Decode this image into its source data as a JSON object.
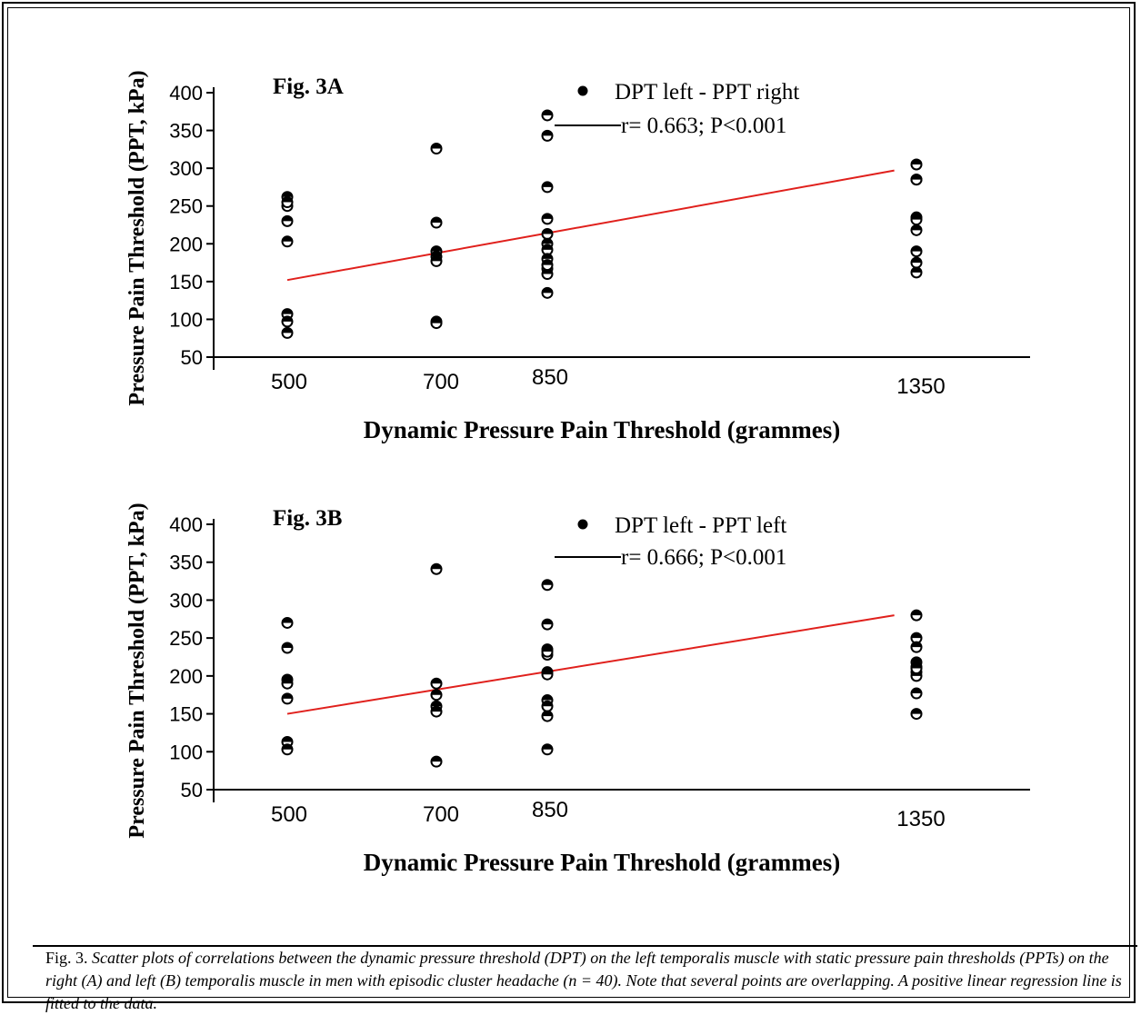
{
  "chart_data": [
    {
      "type": "scatter",
      "panel_label": "Fig. 3A",
      "xlabel": "Dynamic Pressure Pain Threshold (grammes)",
      "ylabel": "Pressure Pain Threshold (PPT, kPa)",
      "x_ticks": [
        "500",
        "700",
        "850",
        "1350"
      ],
      "x_tick_values": [
        500,
        700,
        850,
        1350
      ],
      "y_ticks": [
        50,
        100,
        150,
        200,
        250,
        300,
        350,
        400
      ],
      "ylim": [
        50,
        400
      ],
      "xlim": [
        420,
        1320
      ],
      "legend": {
        "marker_label": "DPT left - PPT right",
        "line_label": "r= 0.663; P<0.001"
      },
      "series": [
        {
          "x": [
            500,
            500,
            500,
            500,
            500,
            500,
            500,
            500,
            700,
            700,
            700,
            700,
            700,
            700,
            700,
            850,
            850,
            850,
            850,
            850,
            850,
            850,
            850,
            850,
            850,
            850,
            850,
            1350,
            1350,
            1350,
            1350,
            1350,
            1350,
            1350,
            1350,
            1350
          ],
          "y": [
            262,
            250,
            230,
            203,
            107,
            97,
            82,
            255,
            326,
            228,
            190,
            183,
            177,
            97,
            95,
            370,
            343,
            275,
            233,
            213,
            200,
            192,
            180,
            167,
            160,
            135,
            172,
            305,
            285,
            235,
            218,
            190,
            175,
            162,
            285,
            232
          ]
        }
      ],
      "regression": {
        "x": [
          500,
          1320
        ],
        "y": [
          152,
          297
        ],
        "color": "#e0201c"
      },
      "grid": false
    },
    {
      "type": "scatter",
      "panel_label": "Fig. 3B",
      "xlabel": "Dynamic Pressure Pain Threshold (grammes)",
      "ylabel": "Pressure Pain Threshold (PPT, kPa)",
      "x_ticks": [
        "500",
        "700",
        "850",
        "1350"
      ],
      "x_tick_values": [
        500,
        700,
        850,
        1350
      ],
      "y_ticks": [
        50,
        100,
        150,
        200,
        250,
        300,
        350,
        400
      ],
      "ylim": [
        50,
        400
      ],
      "xlim": [
        420,
        1320
      ],
      "legend": {
        "marker_label": "DPT left - PPT left",
        "line_label": "r= 0.666; P<0.001"
      },
      "series": [
        {
          "x": [
            500,
            500,
            500,
            500,
            500,
            500,
            500,
            700,
            700,
            700,
            700,
            700,
            700,
            850,
            850,
            850,
            850,
            850,
            850,
            850,
            850,
            850,
            850,
            850,
            1350,
            1350,
            1350,
            1350,
            1350,
            1350,
            1350,
            1350,
            1350,
            1350
          ],
          "y": [
            270,
            237,
            195,
            170,
            113,
            103,
            190,
            341,
            190,
            175,
            160,
            153,
            87,
            320,
            268,
            235,
            228,
            205,
            202,
            168,
            160,
            147,
            103,
            232,
            280,
            250,
            238,
            218,
            212,
            205,
            200,
            177,
            150,
            210
          ]
        }
      ],
      "regression": {
        "x": [
          500,
          1320
        ],
        "y": [
          150,
          280
        ],
        "color": "#e0201c"
      },
      "grid": false
    }
  ],
  "caption": {
    "lead": "Fig. 3.",
    "text": "Scatter plots of correlations between the dynamic pressure threshold (DPT) on the left temporalis muscle with static pressure pain thresholds (PPTs) on the right (A) and left (B) temporalis muscle in men with episodic cluster headache (n = 40). Note that several points are overlapping. A positive linear regression line is fitted to the data."
  }
}
